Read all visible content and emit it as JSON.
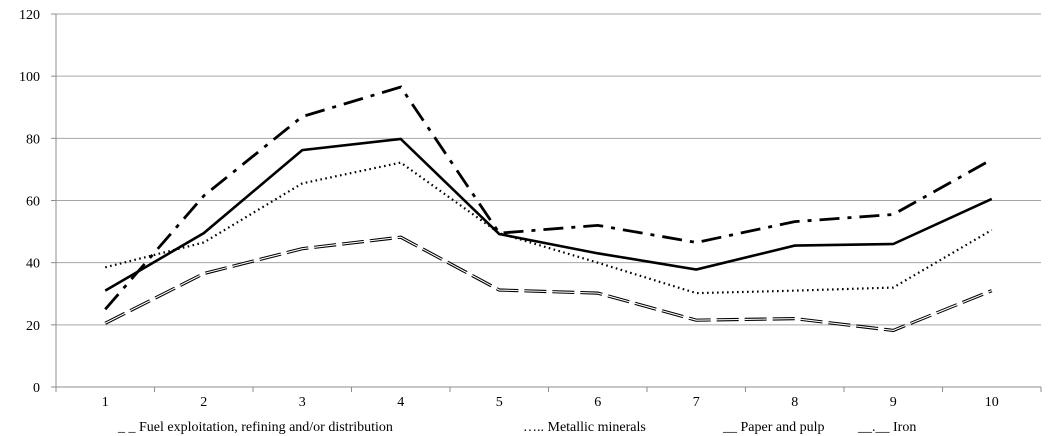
{
  "chart_data": {
    "type": "line",
    "x": [
      1,
      2,
      3,
      4,
      5,
      6,
      7,
      8,
      9,
      10
    ],
    "xlim": [
      0.5,
      10.5
    ],
    "ylim": [
      0,
      120
    ],
    "yticks": [
      0,
      20,
      40,
      60,
      80,
      100,
      120
    ],
    "grid": "horizontal",
    "legend_position": "bottom",
    "series": [
      {
        "name": "Fuel exploitation, refining and/or distribution",
        "legend_marker": "_ _",
        "style": "dashed-double",
        "values": [
          20.5,
          36.5,
          44.5,
          48.2,
          31.2,
          30.2,
          21.5,
          22.0,
          18.2,
          31.0
        ]
      },
      {
        "name": "Metallic minerals",
        "legend_marker": "…..",
        "style": "dotted",
        "values": [
          38.5,
          46.5,
          65.5,
          72.2,
          49.5,
          40.0,
          30.2,
          31.0,
          32.0,
          50.5
        ]
      },
      {
        "name": "Paper and pulp",
        "legend_marker": "__",
        "style": "solid",
        "values": [
          31.0,
          49.5,
          76.2,
          79.8,
          49.2,
          43.0,
          37.8,
          45.5,
          46.0,
          60.5
        ]
      },
      {
        "name": "Iron",
        "legend_marker": "__.__",
        "style": "dash-dot",
        "values": [
          25.0,
          61.5,
          87.0,
          96.5,
          49.5,
          52.0,
          46.5,
          53.2,
          55.5,
          73.2
        ]
      }
    ],
    "colors": {
      "lines": "#000000",
      "grid": "#a6a6a6",
      "axis": "#8c8c8c"
    }
  }
}
